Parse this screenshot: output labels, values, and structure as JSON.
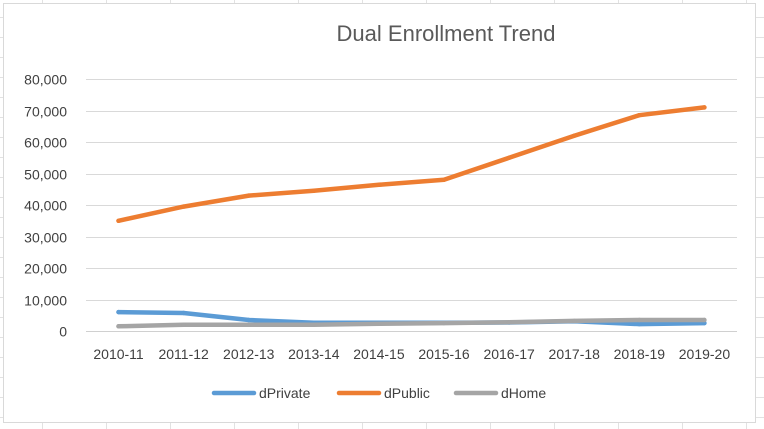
{
  "chart_data": {
    "type": "line",
    "title": "Dual Enrollment Trend",
    "xlabel": "",
    "ylabel": "",
    "categories": [
      "2010-11",
      "2011-12",
      "2012-13",
      "2013-14",
      "2014-15",
      "2015-16",
      "2016-17",
      "2017-18",
      "2018-19",
      "2019-20"
    ],
    "ylim": [
      0,
      80000
    ],
    "yticks": [
      0,
      10000,
      20000,
      30000,
      40000,
      50000,
      60000,
      70000,
      80000
    ],
    "ytick_labels": [
      "0",
      "10,000",
      "20,000",
      "30,000",
      "40,000",
      "50,000",
      "60,000",
      "70,000",
      "80,000"
    ],
    "grid": true,
    "legend_position": "bottom",
    "series": [
      {
        "name": "dPrivate",
        "color": "#5b9bd5",
        "values": [
          6000,
          5700,
          3500,
          2600,
          2600,
          2600,
          2700,
          3100,
          2200,
          2500
        ]
      },
      {
        "name": "dPublic",
        "color": "#ed7d31",
        "values": [
          35000,
          39500,
          43000,
          44500,
          46400,
          48000,
          55000,
          62000,
          68500,
          71000
        ]
      },
      {
        "name": "dHome",
        "color": "#a5a5a5",
        "values": [
          1500,
          2000,
          2000,
          2000,
          2300,
          2500,
          2800,
          3200,
          3500,
          3500
        ]
      }
    ]
  }
}
